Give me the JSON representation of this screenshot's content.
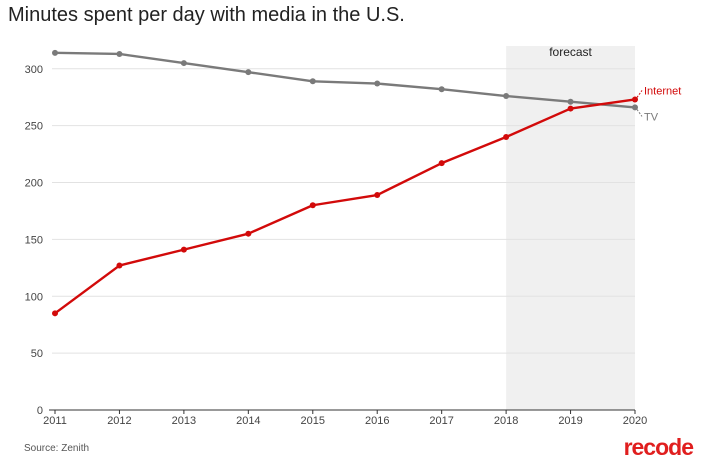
{
  "chart_data": {
    "type": "line",
    "title": "Minutes spent per day with media in the U.S.",
    "x": [
      2011,
      2012,
      2013,
      2014,
      2015,
      2016,
      2017,
      2018,
      2019,
      2020
    ],
    "x_tick_labels": [
      "2011",
      "2012",
      "2013",
      "2014",
      "2015",
      "2016",
      "2017",
      "2018",
      "2019",
      "2020"
    ],
    "ylim": [
      0,
      320
    ],
    "y_ticks": [
      0,
      50,
      100,
      150,
      200,
      250,
      300
    ],
    "y_tick_labels": [
      "0",
      "50",
      "100",
      "150",
      "200",
      "250",
      "300"
    ],
    "grid": true,
    "series": [
      {
        "name": "TV",
        "label": "TV",
        "color": "#7a7a7a",
        "values": [
          314,
          313,
          305,
          297,
          289,
          287,
          282,
          276,
          271,
          266
        ]
      },
      {
        "name": "Internet",
        "label": "Internet",
        "color": "#d20a0a",
        "values": [
          85,
          127,
          141,
          155,
          180,
          189,
          217,
          240,
          265,
          273
        ]
      }
    ],
    "forecast": {
      "label": "forecast",
      "from": 2018,
      "to": 2020,
      "color": "#f0f0f0"
    }
  },
  "source": "Source: Zenith",
  "brand": "recode"
}
